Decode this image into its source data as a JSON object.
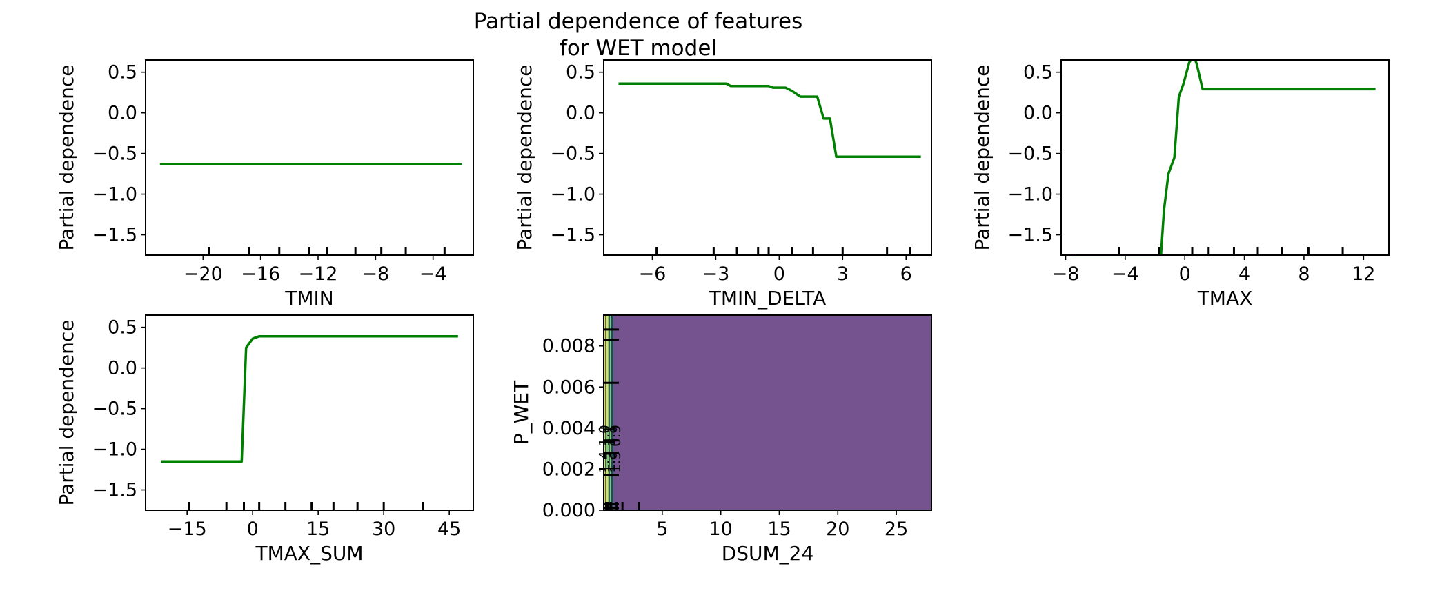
{
  "figure": {
    "title_line1": "Partial dependence of features",
    "title_line2": "for WET model"
  },
  "colors": {
    "line": "#008000",
    "contour_fill": "#75538f",
    "contour_light": "#7fc97f",
    "contour_yellow": "#d8e06a",
    "contour_teal": "#3a8d8c"
  },
  "chart_data": [
    {
      "type": "line",
      "id": "tmin",
      "xlabel": "TMIN",
      "ylabel": "Partial dependence",
      "xlim": [
        -24,
        -1.2
      ],
      "ylim": [
        -1.75,
        0.65
      ],
      "xticks": [
        -20,
        -16,
        -12,
        -8,
        -4
      ],
      "xtick_labels": [
        "−20",
        "−16",
        "−12",
        "−8",
        "−4"
      ],
      "yticks": [
        0.5,
        0.0,
        -0.5,
        -1.0,
        -1.5
      ],
      "ytick_labels": [
        "0.5",
        "0.0",
        "−0.5",
        "−1.0",
        "−1.5"
      ],
      "x": [
        -23,
        -2
      ],
      "y": [
        -0.63,
        -0.63
      ],
      "deciles": [
        -19.6,
        -16.8,
        -14.7,
        -12.6,
        -11.4,
        -9.4,
        -7.6,
        -5.9,
        -3.2
      ]
    },
    {
      "type": "line",
      "id": "tmin_delta",
      "xlabel": "TMIN_DELTA",
      "ylabel": "Partial dependence",
      "xlim": [
        -8.3,
        7.2
      ],
      "ylim": [
        -1.75,
        0.65
      ],
      "xticks": [
        -6,
        -3,
        0,
        3,
        6
      ],
      "xtick_labels": [
        "−6",
        "−3",
        "0",
        "3",
        "6"
      ],
      "yticks": [
        0.5,
        0.0,
        -0.5,
        -1.0,
        -1.5
      ],
      "ytick_labels": [
        "0.5",
        "0.0",
        "−0.5",
        "−1.0",
        "−1.5"
      ],
      "x": [
        -7.6,
        -2.5,
        -2.3,
        -0.5,
        -0.3,
        0.3,
        0.6,
        1.0,
        1.6,
        1.8,
        2.1,
        2.4,
        2.7,
        6.7
      ],
      "y": [
        0.36,
        0.36,
        0.33,
        0.33,
        0.31,
        0.31,
        0.27,
        0.2,
        0.2,
        0.2,
        -0.07,
        -0.07,
        -0.54,
        -0.54
      ],
      "deciles": [
        -5.8,
        -3.1,
        -2.0,
        -1.0,
        -0.5,
        0.6,
        1.6,
        3.0,
        5.1,
        6.2
      ]
    },
    {
      "type": "line",
      "id": "tmax",
      "xlabel": "TMAX",
      "ylabel": "Partial dependence",
      "xlim": [
        -8.3,
        13.7
      ],
      "ylim": [
        -1.75,
        0.65
      ],
      "xticks": [
        -8,
        -4,
        0,
        4,
        8,
        12
      ],
      "xtick_labels": [
        "−8",
        "−4",
        "0",
        "4",
        "8",
        "12"
      ],
      "yticks": [
        0.5,
        0.0,
        -0.5,
        -1.0,
        -1.5
      ],
      "ytick_labels": [
        "0.5",
        "0.0",
        "−0.5",
        "−1.0",
        "−1.5"
      ],
      "x": [
        -7.6,
        -1.6,
        -1.4,
        -1.1,
        -0.7,
        -0.4,
        -0.1,
        0.3,
        0.6,
        0.8,
        1.2,
        12.8
      ],
      "y": [
        -1.75,
        -1.75,
        -1.2,
        -0.75,
        -0.55,
        0.2,
        0.35,
        0.62,
        0.7,
        0.6,
        0.29,
        0.29
      ],
      "deciles": [
        -4.4,
        -1.7,
        0.5,
        1.6,
        3.3,
        4.9,
        6.5,
        8.3,
        10.6
      ]
    },
    {
      "type": "line",
      "id": "tmax_sum",
      "xlabel": "TMAX_SUM",
      "ylabel": "Partial dependence",
      "xlim": [
        -24.5,
        50.5
      ],
      "ylim": [
        -1.75,
        0.65
      ],
      "xticks": [
        -15,
        0,
        15,
        30,
        45
      ],
      "xtick_labels": [
        "−15",
        "0",
        "15",
        "30",
        "45"
      ],
      "yticks": [
        0.5,
        0.0,
        -0.5,
        -1.0,
        -1.5
      ],
      "ytick_labels": [
        "0.5",
        "0.0",
        "−0.5",
        "−1.0",
        "−1.5"
      ],
      "x": [
        -21,
        -2.5,
        -1.5,
        0,
        1.5,
        2.5,
        47
      ],
      "y": [
        -1.15,
        -1.15,
        0.25,
        0.36,
        0.39,
        0.39,
        0.39
      ],
      "deciles": [
        -14.5,
        -6,
        -2,
        1.5,
        7.5,
        13.5,
        18.5,
        24,
        30,
        39
      ]
    },
    {
      "type": "contour",
      "id": "dsum_pwet",
      "xlabel": "DSUM_24",
      "ylabel": "P_WET",
      "xlim": [
        0,
        28
      ],
      "ylim": [
        0,
        0.0095
      ],
      "xticks": [
        5,
        10,
        15,
        20,
        25
      ],
      "xtick_labels": [
        "5",
        "10",
        "15",
        "20",
        "25"
      ],
      "yticks": [
        0.0,
        0.002,
        0.004,
        0.006,
        0.008
      ],
      "ytick_labels": [
        "0.000",
        "0.002",
        "0.004",
        "0.006",
        "0.008"
      ],
      "x_deciles": [
        0.2,
        0.35,
        0.6,
        1.1,
        1.6,
        3.0
      ],
      "y_deciles": [
        0.0001,
        0.0003,
        0.0017,
        0.0028,
        0.0034,
        0.0062,
        0.0083,
        0.0088
      ],
      "contour_labels": [
        "1.0",
        "1.1",
        "0.9",
        "1.4",
        "1.3",
        "1.9"
      ]
    }
  ]
}
